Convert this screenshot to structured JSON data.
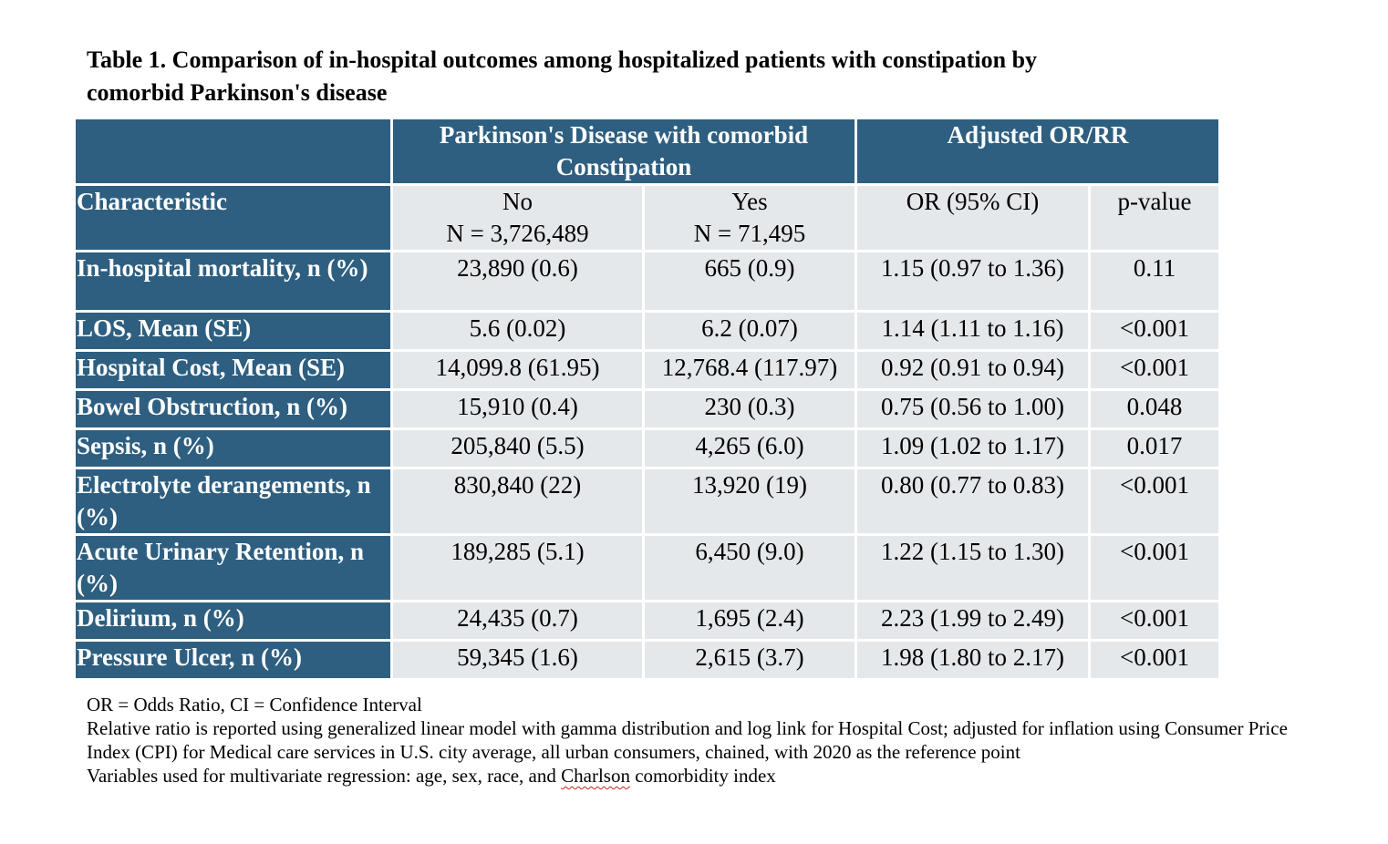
{
  "title": {
    "line1": "Table 1. Comparison of in-hospital outcomes among hospitalized patients with constipation by",
    "line2": "comorbid Parkinson's disease"
  },
  "table": {
    "group_headers": {
      "blank": "",
      "pd_group_line1": "Parkinson's Disease with comorbid",
      "pd_group_line2": "Constipation",
      "adjusted": "Adjusted OR/RR"
    },
    "col_headers": {
      "characteristic": "Characteristic",
      "no_label": "No",
      "no_n": "N = 3,726,489",
      "yes_label": "Yes",
      "yes_n": "N = 71,495",
      "or_ci": "OR (95% CI)",
      "p_value": "p-value"
    },
    "rows": [
      {
        "label": "In-hospital mortality, n (%)",
        "no": "23,890 (0.6)",
        "yes": "665 (0.9)",
        "or": "1.15 (0.97 to 1.36)",
        "p": "0.11"
      },
      {
        "label": "LOS, Mean (SE)",
        "no": "5.6 (0.02)",
        "yes": "6.2 (0.07)",
        "or": "1.14 (1.11 to 1.16)",
        "p": "<0.001"
      },
      {
        "label": "Hospital Cost, Mean (SE)",
        "no": "14,099.8 (61.95)",
        "yes": "12,768.4 (117.97)",
        "or": "0.92 (0.91 to 0.94)",
        "p": "<0.001"
      },
      {
        "label": "Bowel Obstruction, n (%)",
        "no": "15,910 (0.4)",
        "yes": "230 (0.3)",
        "or": "0.75 (0.56 to 1.00)",
        "p": "0.048"
      },
      {
        "label": "Sepsis, n (%)",
        "no": "205,840 (5.5)",
        "yes": "4,265 (6.0)",
        "or": "1.09 (1.02 to 1.17)",
        "p": "0.017"
      },
      {
        "label": "Electrolyte derangements, n (%)",
        "no": "830,840 (22)",
        "yes": "13,920 (19)",
        "or": "0.80 (0.77 to 0.83)",
        "p": "<0.001"
      },
      {
        "label": "Acute Urinary Retention, n (%)",
        "no": "189,285 (5.1)",
        "yes": "6,450 (9.0)",
        "or": "1.22 (1.15 to 1.30)",
        "p": "<0.001"
      },
      {
        "label": "Delirium, n (%)",
        "no": "24,435 (0.7)",
        "yes": "1,695 (2.4)",
        "or": "2.23 (1.99 to 2.49)",
        "p": "<0.001"
      },
      {
        "label": "Pressure Ulcer, n (%)",
        "no": "59,345 (1.6)",
        "yes": "2,615 (3.7)",
        "or": "1.98 (1.80 to 2.17)",
        "p": "<0.001"
      }
    ]
  },
  "footnotes": {
    "line1": "OR = Odds Ratio, CI = Confidence Interval",
    "line2": "Relative ratio is reported using generalized linear model with gamma distribution and log link for Hospital Cost; adjusted for inflation using Consumer Price",
    "line3": "Index (CPI) for Medical care services in U.S. city average, all urban consumers, chained, with 2020 as the reference point",
    "line4_before": "Variables used for multivariate regression: age, sex, race, and ",
    "line4_flagged": "Charlson",
    "line4_after": " comorbidity index"
  },
  "colors": {
    "header_bg": "#2e5f80",
    "cell_bg": "#e5e8eb",
    "spellcheck_underline": "#d02020"
  }
}
